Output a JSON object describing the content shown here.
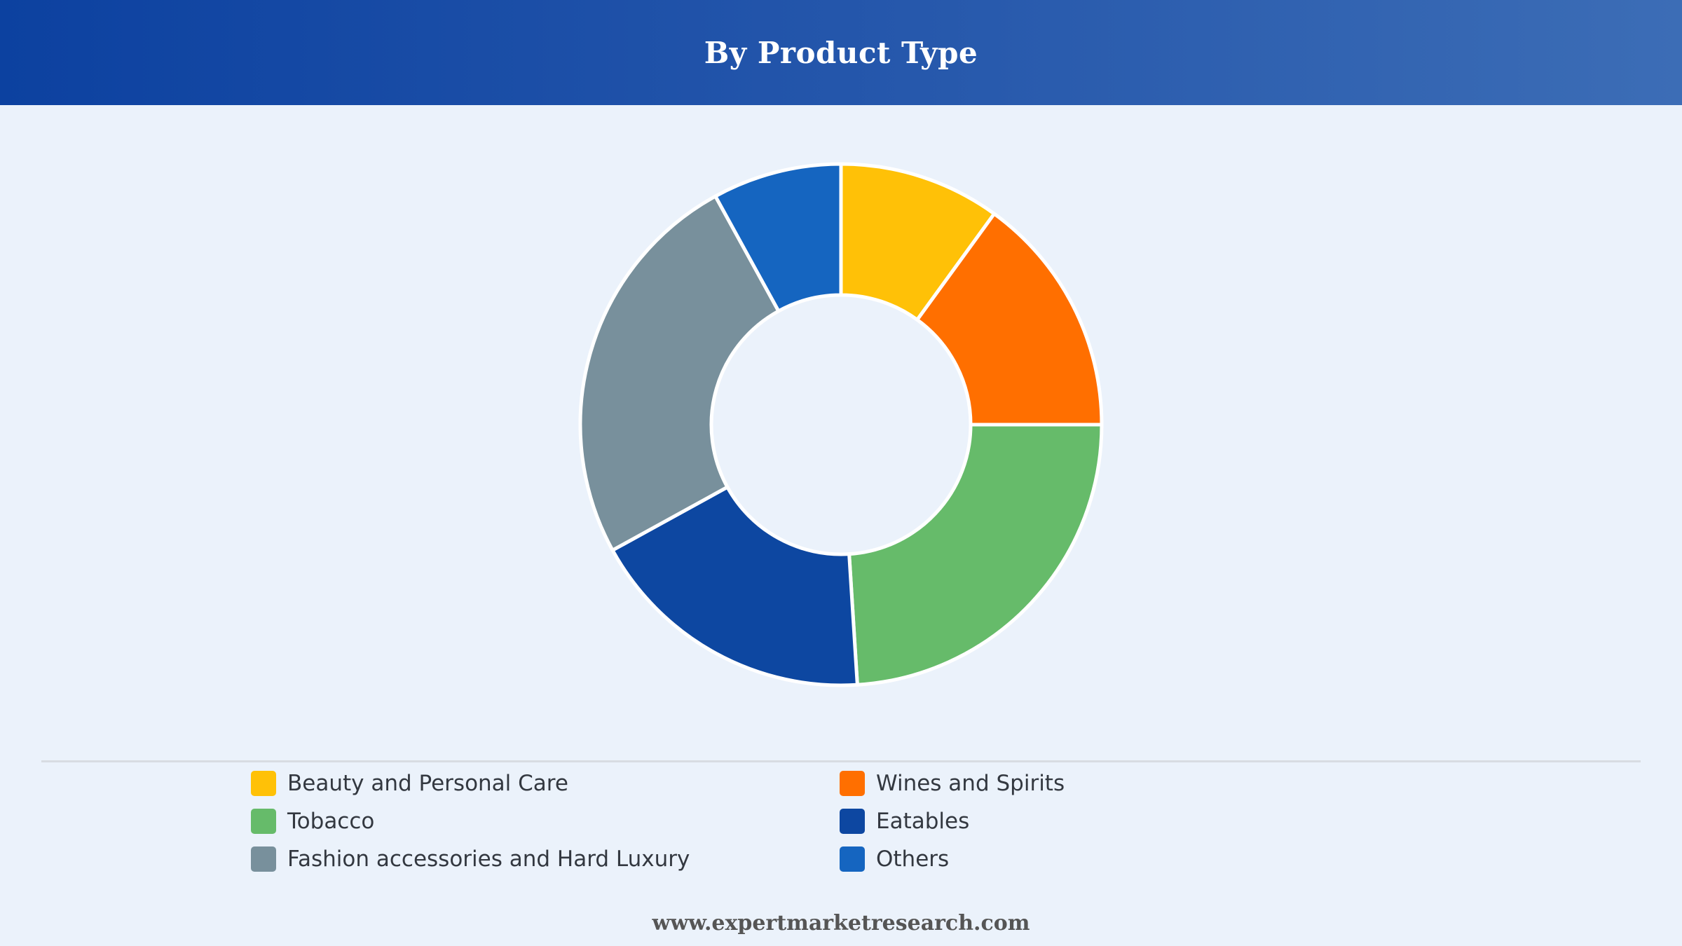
{
  "header": {
    "title": "By Product Type"
  },
  "chart_data": {
    "type": "pie",
    "donut": true,
    "title": "By Product Type",
    "categories": [
      "Beauty and Personal Care",
      "Wines and Spirits",
      "Tobacco",
      "Eatables",
      "Fashion accessories and Hard Luxury",
      "Others"
    ],
    "values": [
      10,
      15,
      24,
      18,
      25,
      8
    ],
    "colors": [
      "#FFC107",
      "#FF6F00",
      "#66BB6A",
      "#0D47A1",
      "#78909C",
      "#1565C0"
    ],
    "legend_position": "bottom"
  },
  "footer": {
    "url": "www.expertmarketresearch.com"
  }
}
